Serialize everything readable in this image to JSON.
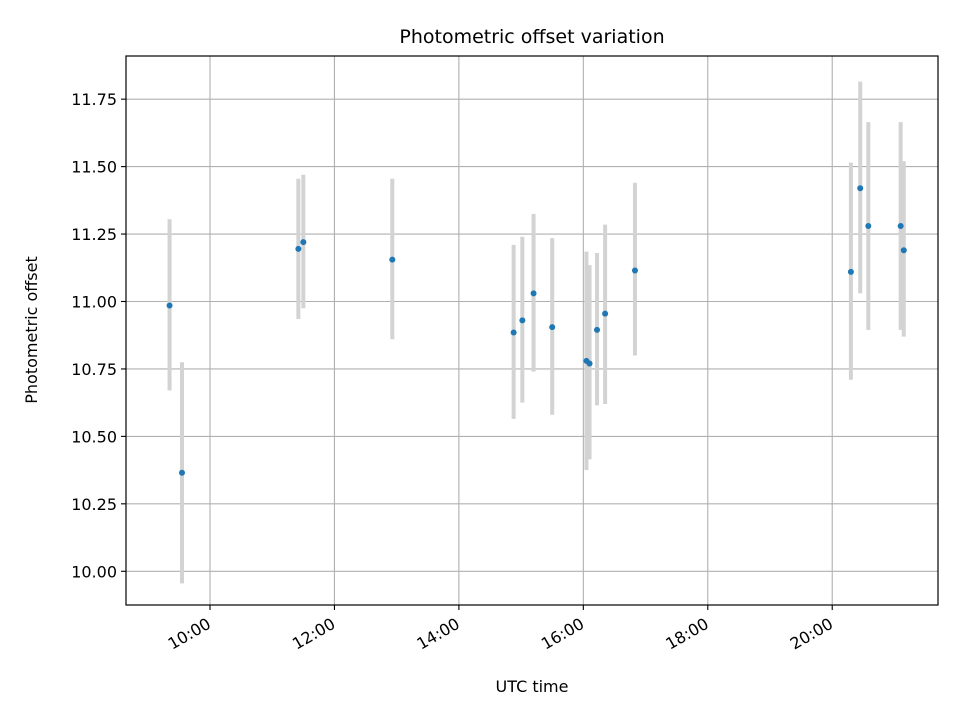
{
  "chart_data": {
    "type": "scatter",
    "title": "Photometric offset variation",
    "xlabel": "UTC time",
    "ylabel": "Photometric offset",
    "x_unit": "hours (UTC)",
    "xlim": [
      8.65,
      21.7
    ],
    "ylim": [
      9.875,
      11.91
    ],
    "grid": true,
    "x_ticks": [
      {
        "value": 10,
        "label": "10:00"
      },
      {
        "value": 12,
        "label": "12:00"
      },
      {
        "value": 14,
        "label": "14:00"
      },
      {
        "value": 16,
        "label": "16:00"
      },
      {
        "value": 18,
        "label": "18:00"
      },
      {
        "value": 20,
        "label": "20:00"
      }
    ],
    "y_ticks": [
      {
        "value": 10.0,
        "label": "10.00"
      },
      {
        "value": 10.25,
        "label": "10.25"
      },
      {
        "value": 10.5,
        "label": "10.50"
      },
      {
        "value": 10.75,
        "label": "10.75"
      },
      {
        "value": 11.0,
        "label": "11.00"
      },
      {
        "value": 11.25,
        "label": "11.25"
      },
      {
        "value": 11.5,
        "label": "11.50"
      },
      {
        "value": 11.75,
        "label": "11.75"
      }
    ],
    "colors": {
      "marker": "#1f77b4",
      "errorbar": "#d3d3d3",
      "grid": "#b0b0b0"
    },
    "points": [
      {
        "x": 9.35,
        "y": 10.985,
        "lo": 10.67,
        "hi": 11.305
      },
      {
        "x": 9.55,
        "y": 10.365,
        "lo": 9.955,
        "hi": 10.775
      },
      {
        "x": 11.42,
        "y": 11.195,
        "lo": 10.935,
        "hi": 11.455
      },
      {
        "x": 11.5,
        "y": 11.22,
        "lo": 10.975,
        "hi": 11.47
      },
      {
        "x": 12.93,
        "y": 11.155,
        "lo": 10.86,
        "hi": 11.455
      },
      {
        "x": 14.88,
        "y": 10.885,
        "lo": 10.565,
        "hi": 11.21
      },
      {
        "x": 15.02,
        "y": 10.93,
        "lo": 10.625,
        "hi": 11.24
      },
      {
        "x": 15.2,
        "y": 11.03,
        "lo": 10.74,
        "hi": 11.325
      },
      {
        "x": 15.5,
        "y": 10.905,
        "lo": 10.58,
        "hi": 11.235
      },
      {
        "x": 16.05,
        "y": 10.78,
        "lo": 10.375,
        "hi": 11.185
      },
      {
        "x": 16.1,
        "y": 10.77,
        "lo": 10.415,
        "hi": 11.135
      },
      {
        "x": 16.22,
        "y": 10.895,
        "lo": 10.615,
        "hi": 11.18
      },
      {
        "x": 16.35,
        "y": 10.955,
        "lo": 10.62,
        "hi": 11.285
      },
      {
        "x": 16.83,
        "y": 11.115,
        "lo": 10.8,
        "hi": 11.44
      },
      {
        "x": 20.3,
        "y": 11.11,
        "lo": 10.71,
        "hi": 11.515
      },
      {
        "x": 20.45,
        "y": 11.42,
        "lo": 11.03,
        "hi": 11.815
      },
      {
        "x": 20.58,
        "y": 11.28,
        "lo": 10.895,
        "hi": 11.665
      },
      {
        "x": 21.1,
        "y": 11.28,
        "lo": 10.895,
        "hi": 11.665
      },
      {
        "x": 21.15,
        "y": 11.19,
        "lo": 10.87,
        "hi": 11.52
      }
    ]
  }
}
